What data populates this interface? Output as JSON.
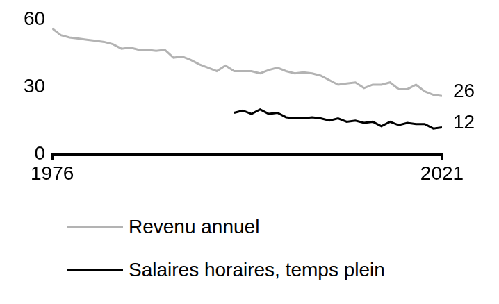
{
  "chart_data": {
    "type": "line",
    "x": [
      1976,
      1977,
      1978,
      1979,
      1980,
      1981,
      1982,
      1983,
      1984,
      1985,
      1986,
      1987,
      1988,
      1989,
      1990,
      1991,
      1992,
      1993,
      1994,
      1995,
      1996,
      1997,
      1998,
      1999,
      2000,
      2001,
      2002,
      2003,
      2004,
      2005,
      2006,
      2007,
      2008,
      2009,
      2010,
      2011,
      2012,
      2013,
      2014,
      2015,
      2016,
      2017,
      2018,
      2019,
      2020,
      2021
    ],
    "series": [
      {
        "name": "Revenu annuel",
        "color": "#b3b3b3",
        "values": [
          56,
          53,
          52,
          51.5,
          51,
          50.5,
          50,
          49,
          47,
          47.5,
          46.5,
          46.5,
          46,
          46.5,
          43,
          43.5,
          42,
          40,
          38.5,
          37,
          39.5,
          37,
          37,
          37,
          36,
          37.5,
          38.5,
          37,
          36,
          36.5,
          36,
          35,
          33,
          31,
          31.5,
          32,
          29.5,
          31,
          31,
          32,
          29,
          29,
          31,
          28,
          26.5,
          26
        ]
      },
      {
        "name": "Salaires horaires, temps plein",
        "color": "#000000",
        "values": [
          null,
          null,
          null,
          null,
          null,
          null,
          null,
          null,
          null,
          null,
          null,
          null,
          null,
          null,
          null,
          null,
          null,
          null,
          null,
          null,
          null,
          18.5,
          19.5,
          18,
          20,
          18,
          18.5,
          16.5,
          16,
          16,
          16.5,
          16,
          15,
          16,
          14.5,
          15,
          14,
          14.5,
          12.5,
          14.5,
          13,
          14,
          13.5,
          13.5,
          11.5,
          12
        ]
      }
    ],
    "annotations": [
      {
        "text": "26",
        "x": 2021,
        "y": 26
      },
      {
        "text": "12",
        "x": 2021,
        "y": 12
      }
    ],
    "xlim": [
      1976,
      2021
    ],
    "xticks": [
      1976,
      2021
    ],
    "ylim": [
      0,
      60
    ],
    "yticks": [
      0,
      30,
      60
    ],
    "grid": false,
    "legend": "bottom"
  }
}
